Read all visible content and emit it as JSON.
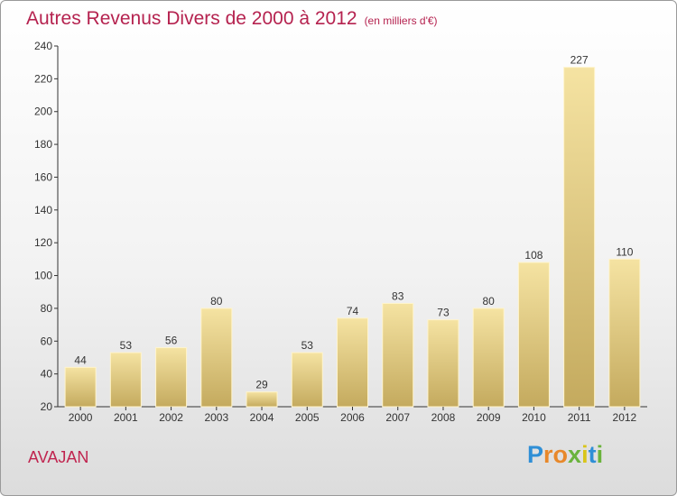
{
  "title": "Autres Revenus Divers de 2000 à 2012",
  "unit": "(en milliers d'€)",
  "town": "AVAJAN",
  "brand": {
    "letters": [
      "P",
      "r",
      "o",
      "x",
      "i",
      "t",
      "i"
    ],
    "colors": [
      "#2f8fd6",
      "#e8882a",
      "#e8882a",
      "#6ab33c",
      "#d9c51a",
      "#2f8fd6",
      "#6ab33c"
    ]
  },
  "colors": {
    "bar_light": "#f5e3a2",
    "bar_dark": "#c4aa5e",
    "title": "#b5224f",
    "axis": "#333333"
  },
  "chart_data": {
    "type": "bar",
    "title": "Autres Revenus Divers de 2000 à 2012",
    "subtitle": "(en milliers d'€)",
    "xlabel": "",
    "ylabel": "",
    "categories": [
      "2000",
      "2001",
      "2002",
      "2003",
      "2004",
      "2005",
      "2006",
      "2007",
      "2008",
      "2009",
      "2010",
      "2011",
      "2012"
    ],
    "values": [
      44,
      53,
      56,
      80,
      29,
      53,
      74,
      83,
      73,
      80,
      108,
      227,
      110
    ],
    "ylim": [
      20,
      240
    ],
    "yticks": [
      20,
      40,
      60,
      80,
      100,
      120,
      140,
      160,
      180,
      200,
      220,
      240
    ],
    "grid": false,
    "legend": "none"
  }
}
